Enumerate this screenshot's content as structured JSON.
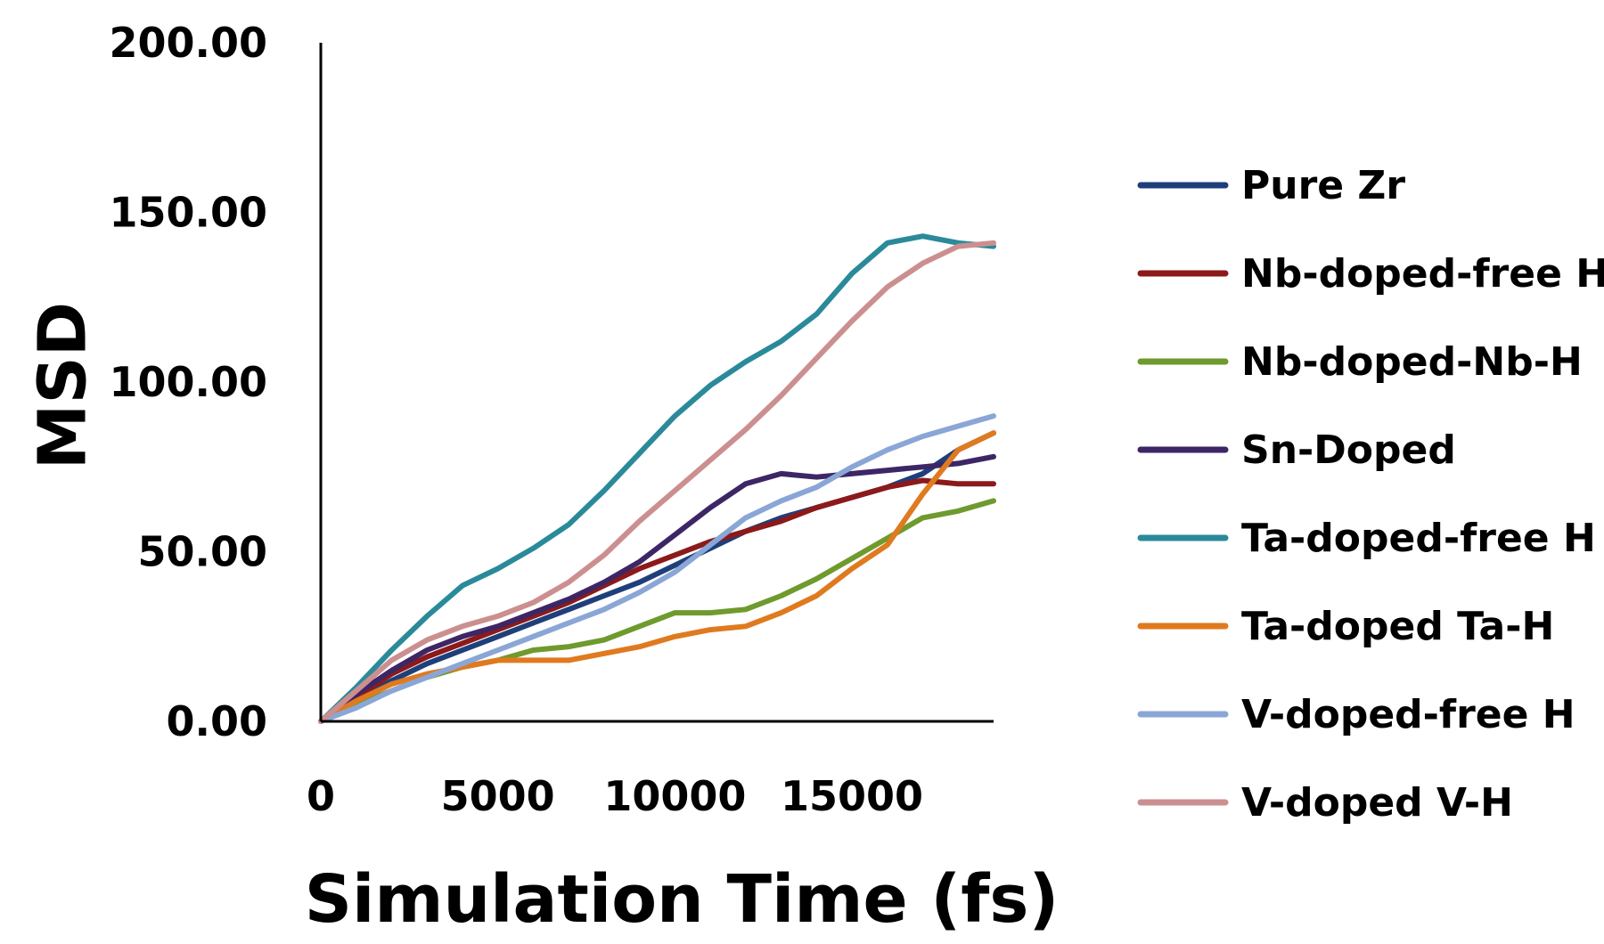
{
  "chart_data": {
    "type": "line",
    "title": "",
    "xlabel": "Simulation Time (fs)",
    "ylabel": "MSD",
    "xlim": [
      0,
      19000
    ],
    "ylim": [
      0,
      200
    ],
    "x_ticks": [
      "0",
      "5000",
      "10000",
      "15000"
    ],
    "x_tick_values": [
      0,
      5000,
      10000,
      15000
    ],
    "y_ticks": [
      "0.00",
      "50.00",
      "100.00",
      "150.00",
      "200.00"
    ],
    "y_tick_values": [
      0,
      50,
      100,
      150,
      200
    ],
    "grid": false,
    "legend_position": "right",
    "x": [
      0,
      1000,
      2000,
      3000,
      4000,
      5000,
      6000,
      7000,
      8000,
      9000,
      10000,
      11000,
      12000,
      13000,
      14000,
      15000,
      16000,
      17000,
      18000,
      19000
    ],
    "series": [
      {
        "name": "Pure Zr",
        "color": "#1f3f7a",
        "values": [
          0,
          6,
          12,
          17,
          21,
          25,
          29,
          33,
          37,
          41,
          46,
          51,
          56,
          60,
          63,
          66,
          69,
          73,
          80,
          85
        ]
      },
      {
        "name": "Nb-doped-free H",
        "color": "#8c1a1a",
        "values": [
          0,
          7,
          14,
          19,
          23,
          27,
          31,
          35,
          40,
          45,
          49,
          53,
          56,
          59,
          63,
          66,
          69,
          71,
          70,
          70
        ]
      },
      {
        "name": "Nb-doped-Nb-H",
        "color": "#6f9a2e",
        "values": [
          0,
          5,
          9,
          13,
          16,
          18,
          21,
          22,
          24,
          28,
          32,
          32,
          33,
          37,
          42,
          48,
          54,
          60,
          62,
          65
        ]
      },
      {
        "name": "Sn-Doped",
        "color": "#3d2666",
        "values": [
          0,
          8,
          15,
          21,
          25,
          28,
          32,
          36,
          41,
          47,
          55,
          63,
          70,
          73,
          72,
          73,
          74,
          75,
          76,
          78
        ]
      },
      {
        "name": "Ta-doped-free H",
        "color": "#2a8a9a",
        "values": [
          0,
          10,
          21,
          31,
          40,
          45,
          51,
          58,
          68,
          79,
          90,
          99,
          106,
          112,
          120,
          132,
          141,
          143,
          141,
          140
        ]
      },
      {
        "name": "Ta-doped Ta-H",
        "color": "#e07a1f",
        "values": [
          0,
          6,
          11,
          14,
          16,
          18,
          18,
          18,
          20,
          22,
          25,
          27,
          28,
          32,
          37,
          45,
          52,
          67,
          80,
          85
        ]
      },
      {
        "name": "V-doped-free H",
        "color": "#8aa6d6",
        "values": [
          0,
          4,
          9,
          13,
          17,
          21,
          25,
          29,
          33,
          38,
          44,
          52,
          60,
          65,
          69,
          75,
          80,
          84,
          87,
          90
        ]
      },
      {
        "name": "V-doped V-H",
        "color": "#cc8f8f",
        "values": [
          0,
          9,
          18,
          24,
          28,
          31,
          35,
          41,
          49,
          59,
          68,
          77,
          86,
          96,
          107,
          118,
          128,
          135,
          140,
          141
        ]
      }
    ]
  }
}
